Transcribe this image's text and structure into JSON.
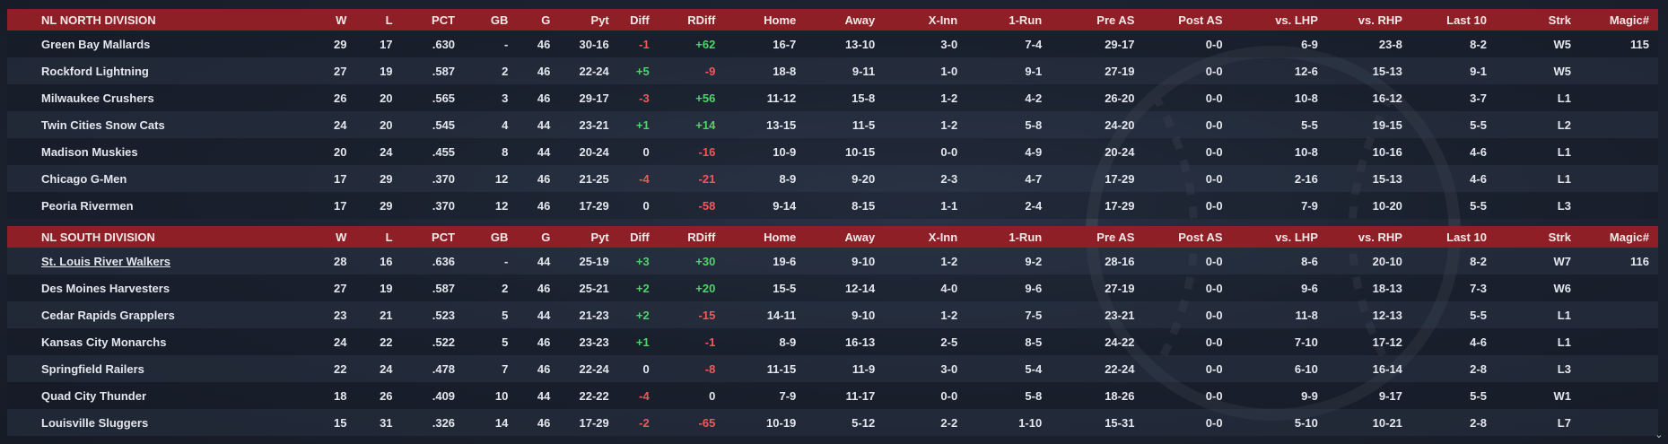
{
  "columns": [
    "W",
    "L",
    "PCT",
    "GB",
    "G",
    "Pyt",
    "Diff",
    "RDiff",
    "Home",
    "Away",
    "X-Inn",
    "1-Run",
    "Pre AS",
    "Post AS",
    "vs. LHP",
    "vs. RHP",
    "Last 10",
    "Strk",
    "Magic#"
  ],
  "divisions": [
    {
      "name": "NL NORTH DIVISION",
      "teams": [
        {
          "team": "Green Bay  Mallards",
          "W": "29",
          "L": "17",
          "PCT": ".630",
          "GB": "-",
          "G": "46",
          "Pyt": "30-16",
          "Diff": "-1",
          "RDiff": "+62",
          "Home": "16-7",
          "Away": "13-10",
          "XInn": "3-0",
          "OneRun": "7-4",
          "PreAS": "29-17",
          "PostAS": "0-0",
          "vsLHP": "6-9",
          "vsRHP": "23-8",
          "Last10": "8-2",
          "Strk": "W5",
          "Magic": "115"
        },
        {
          "team": "Rockford Lightning",
          "W": "27",
          "L": "19",
          "PCT": ".587",
          "GB": "2",
          "G": "46",
          "Pyt": "22-24",
          "Diff": "+5",
          "RDiff": "-9",
          "Home": "18-8",
          "Away": "9-11",
          "XInn": "1-0",
          "OneRun": "9-1",
          "PreAS": "27-19",
          "PostAS": "0-0",
          "vsLHP": "12-6",
          "vsRHP": "15-13",
          "Last10": "9-1",
          "Strk": "W5",
          "Magic": ""
        },
        {
          "team": "Milwaukee Crushers",
          "W": "26",
          "L": "20",
          "PCT": ".565",
          "GB": "3",
          "G": "46",
          "Pyt": "29-17",
          "Diff": "-3",
          "RDiff": "+56",
          "Home": "11-12",
          "Away": "15-8",
          "XInn": "1-2",
          "OneRun": "4-2",
          "PreAS": "26-20",
          "PostAS": "0-0",
          "vsLHP": "10-8",
          "vsRHP": "16-12",
          "Last10": "3-7",
          "Strk": "L1",
          "Magic": ""
        },
        {
          "team": "Twin Cities Snow Cats",
          "W": "24",
          "L": "20",
          "PCT": ".545",
          "GB": "4",
          "G": "44",
          "Pyt": "23-21",
          "Diff": "+1",
          "RDiff": "+14",
          "Home": "13-15",
          "Away": "11-5",
          "XInn": "1-2",
          "OneRun": "5-8",
          "PreAS": "24-20",
          "PostAS": "0-0",
          "vsLHP": "5-5",
          "vsRHP": "19-15",
          "Last10": "5-5",
          "Strk": "L2",
          "Magic": ""
        },
        {
          "team": "Madison Muskies",
          "W": "20",
          "L": "24",
          "PCT": ".455",
          "GB": "8",
          "G": "44",
          "Pyt": "20-24",
          "Diff": "0",
          "RDiff": "-16",
          "Home": "10-9",
          "Away": "10-15",
          "XInn": "0-0",
          "OneRun": "4-9",
          "PreAS": "20-24",
          "PostAS": "0-0",
          "vsLHP": "10-8",
          "vsRHP": "10-16",
          "Last10": "4-6",
          "Strk": "L1",
          "Magic": ""
        },
        {
          "team": "Chicago G-Men",
          "W": "17",
          "L": "29",
          "PCT": ".370",
          "GB": "12",
          "G": "46",
          "Pyt": "21-25",
          "Diff": "-4",
          "RDiff": "-21",
          "Home": "8-9",
          "Away": "9-20",
          "XInn": "2-3",
          "OneRun": "4-7",
          "PreAS": "17-29",
          "PostAS": "0-0",
          "vsLHP": "2-16",
          "vsRHP": "15-13",
          "Last10": "4-6",
          "Strk": "L1",
          "Magic": ""
        },
        {
          "team": "Peoria Rivermen",
          "W": "17",
          "L": "29",
          "PCT": ".370",
          "GB": "12",
          "G": "46",
          "Pyt": "17-29",
          "Diff": "0",
          "RDiff": "-58",
          "Home": "9-14",
          "Away": "8-15",
          "XInn": "1-1",
          "OneRun": "2-4",
          "PreAS": "17-29",
          "PostAS": "0-0",
          "vsLHP": "7-9",
          "vsRHP": "10-20",
          "Last10": "5-5",
          "Strk": "L3",
          "Magic": ""
        }
      ]
    },
    {
      "name": "NL SOUTH DIVISION",
      "teams": [
        {
          "team": "St. Louis River Walkers",
          "link": true,
          "W": "28",
          "L": "16",
          "PCT": ".636",
          "GB": "-",
          "G": "44",
          "Pyt": "25-19",
          "Diff": "+3",
          "RDiff": "+30",
          "Home": "19-6",
          "Away": "9-10",
          "XInn": "1-2",
          "OneRun": "9-2",
          "PreAS": "28-16",
          "PostAS": "0-0",
          "vsLHP": "8-6",
          "vsRHP": "20-10",
          "Last10": "8-2",
          "Strk": "W7",
          "Magic": "116"
        },
        {
          "team": "Des Moines Harvesters",
          "W": "27",
          "L": "19",
          "PCT": ".587",
          "GB": "2",
          "G": "46",
          "Pyt": "25-21",
          "Diff": "+2",
          "RDiff": "+20",
          "Home": "15-5",
          "Away": "12-14",
          "XInn": "4-0",
          "OneRun": "9-6",
          "PreAS": "27-19",
          "PostAS": "0-0",
          "vsLHP": "9-6",
          "vsRHP": "18-13",
          "Last10": "7-3",
          "Strk": "W6",
          "Magic": ""
        },
        {
          "team": "Cedar Rapids Grapplers",
          "W": "23",
          "L": "21",
          "PCT": ".523",
          "GB": "5",
          "G": "44",
          "Pyt": "21-23",
          "Diff": "+2",
          "RDiff": "-15",
          "Home": "14-11",
          "Away": "9-10",
          "XInn": "1-2",
          "OneRun": "7-5",
          "PreAS": "23-21",
          "PostAS": "0-0",
          "vsLHP": "11-8",
          "vsRHP": "12-13",
          "Last10": "5-5",
          "Strk": "L1",
          "Magic": ""
        },
        {
          "team": "Kansas City Monarchs",
          "W": "24",
          "L": "22",
          "PCT": ".522",
          "GB": "5",
          "G": "46",
          "Pyt": "23-23",
          "Diff": "+1",
          "RDiff": "-1",
          "Home": "8-9",
          "Away": "16-13",
          "XInn": "2-5",
          "OneRun": "8-5",
          "PreAS": "24-22",
          "PostAS": "0-0",
          "vsLHP": "7-10",
          "vsRHP": "17-12",
          "Last10": "4-6",
          "Strk": "L1",
          "Magic": ""
        },
        {
          "team": "Springfield Railers",
          "W": "22",
          "L": "24",
          "PCT": ".478",
          "GB": "7",
          "G": "46",
          "Pyt": "22-24",
          "Diff": "0",
          "RDiff": "-8",
          "Home": "11-15",
          "Away": "11-9",
          "XInn": "3-0",
          "OneRun": "5-4",
          "PreAS": "22-24",
          "PostAS": "0-0",
          "vsLHP": "6-10",
          "vsRHP": "16-14",
          "Last10": "2-8",
          "Strk": "L3",
          "Magic": ""
        },
        {
          "team": "Quad City Thunder",
          "W": "18",
          "L": "26",
          "PCT": ".409",
          "GB": "10",
          "G": "44",
          "Pyt": "22-22",
          "Diff": "-4",
          "RDiff": "0",
          "Home": "7-9",
          "Away": "11-17",
          "XInn": "0-0",
          "OneRun": "5-8",
          "PreAS": "18-26",
          "PostAS": "0-0",
          "vsLHP": "9-9",
          "vsRHP": "9-17",
          "Last10": "5-5",
          "Strk": "W1",
          "Magic": ""
        },
        {
          "team": "Louisville Sluggers",
          "W": "15",
          "L": "31",
          "PCT": ".326",
          "GB": "14",
          "G": "46",
          "Pyt": "17-29",
          "Diff": "-2",
          "RDiff": "-65",
          "Home": "10-19",
          "Away": "5-12",
          "XInn": "2-2",
          "OneRun": "1-10",
          "PreAS": "15-31",
          "PostAS": "0-0",
          "vsLHP": "5-10",
          "vsRHP": "10-21",
          "Last10": "2-8",
          "Strk": "L7",
          "Magic": ""
        }
      ]
    }
  ],
  "colors": {
    "header_bg": "#8e1f26",
    "positive": "#4fd36b",
    "negative": "#f2585a"
  },
  "scroll_icon": "chevron-down-icon"
}
